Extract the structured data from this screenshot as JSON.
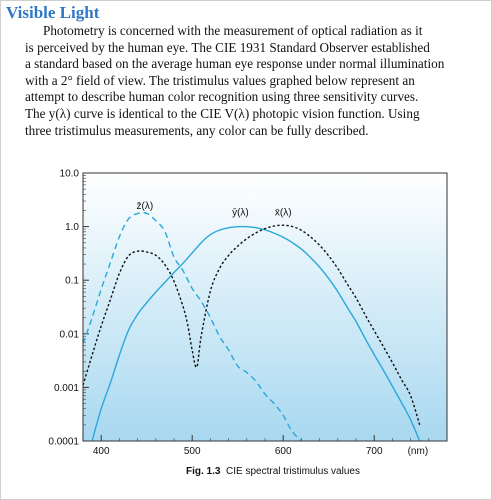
{
  "heading": "Visible Light",
  "paragraph_lines": [
    "Photometry is concerned with the measurement of optical radiation as it",
    "is perceived by the human eye.  The CIE 1931 Standard Observer established",
    "a standard based on the average human eye response under normal illumination",
    "with a 2° field of view.  The tristimulus values graphed below represent an",
    "attempt to describe human color recognition using three sensitivity curves.",
    "The y(λ) curve is identical to the CIE V(λ) photopic vision function.  Using",
    "three tristimulus measurements, any color can be fully described."
  ],
  "caption": {
    "fig": "Fig. 1.3",
    "text": "CIE spectral tristimulus values"
  },
  "colors": {
    "heading": "#2f78c8",
    "y_curve": "#2aa8d8",
    "z_curve": "#2aa8d8",
    "x_curve": "#111111",
    "plot_top": "#ffffff",
    "plot_bottom": "#a8d8f0"
  },
  "chart_data": {
    "type": "line",
    "yscale": "log",
    "xlim": [
      380,
      780
    ],
    "ylim": [
      0.0001,
      10
    ],
    "xticks": [
      {
        "value": 400,
        "label": "400"
      },
      {
        "value": 500,
        "label": "500"
      },
      {
        "value": 600,
        "label": "600"
      },
      {
        "value": 700,
        "label": "700"
      }
    ],
    "x_unit": "(nm)",
    "yticks": [
      {
        "value": 10,
        "label": "10.0"
      },
      {
        "value": 1,
        "label": "1.0"
      },
      {
        "value": 0.1,
        "label": "0.1"
      },
      {
        "value": 0.01,
        "label": "0.01"
      },
      {
        "value": 0.001,
        "label": "0.001"
      },
      {
        "value": 0.0001,
        "label": "0.0001"
      }
    ],
    "series": [
      {
        "name": "z̄(λ)",
        "style": "dashed",
        "x": [
          380,
          390,
          400,
          410,
          420,
          430,
          440,
          450,
          460,
          470,
          480,
          490,
          500,
          510,
          520,
          530,
          540,
          550,
          560,
          570,
          580,
          590,
          600,
          610,
          620
        ],
        "y": [
          0.0065,
          0.02,
          0.068,
          0.21,
          0.65,
          1.39,
          1.75,
          1.77,
          1.29,
          0.81,
          0.27,
          0.15,
          0.07,
          0.04,
          0.02,
          0.009,
          0.005,
          0.0025,
          0.0019,
          0.0013,
          0.00075,
          0.0005,
          0.0003,
          0.00015,
          0.0001
        ]
      },
      {
        "name": "ȳ(λ)",
        "style": "solid",
        "x": [
          390,
          400,
          410,
          420,
          430,
          440,
          450,
          460,
          470,
          480,
          490,
          500,
          510,
          520,
          530,
          540,
          550,
          560,
          570,
          580,
          590,
          600,
          610,
          620,
          630,
          640,
          650,
          660,
          670,
          680,
          690,
          700,
          710,
          720,
          730,
          740,
          750
        ],
        "y": [
          0.0001,
          0.0004,
          0.0012,
          0.004,
          0.0116,
          0.023,
          0.038,
          0.06,
          0.091,
          0.139,
          0.208,
          0.323,
          0.503,
          0.71,
          0.862,
          0.954,
          0.995,
          0.995,
          0.952,
          0.87,
          0.757,
          0.631,
          0.503,
          0.381,
          0.265,
          0.175,
          0.107,
          0.061,
          0.032,
          0.017,
          0.0082,
          0.0041,
          0.0021,
          0.00105,
          0.00052,
          0.00025,
          0.0001
        ]
      },
      {
        "name": "x̄(λ)",
        "style": "dotted",
        "x": [
          380,
          390,
          400,
          410,
          420,
          430,
          440,
          450,
          460,
          470,
          480,
          490,
          495,
          500,
          505,
          510,
          520,
          530,
          540,
          550,
          560,
          570,
          580,
          590,
          600,
          610,
          620,
          630,
          640,
          650,
          660,
          670,
          680,
          690,
          700,
          710,
          720,
          730,
          740,
          750
        ],
        "y": [
          0.0011,
          0.004,
          0.014,
          0.043,
          0.134,
          0.284,
          0.348,
          0.336,
          0.291,
          0.195,
          0.096,
          0.032,
          0.015,
          0.0049,
          0.0024,
          0.0093,
          0.063,
          0.165,
          0.29,
          0.433,
          0.595,
          0.762,
          0.916,
          1.026,
          1.062,
          1.003,
          0.854,
          0.642,
          0.448,
          0.284,
          0.165,
          0.087,
          0.047,
          0.0227,
          0.0114,
          0.0058,
          0.0029,
          0.0014,
          0.0007,
          0.0002
        ]
      }
    ]
  }
}
